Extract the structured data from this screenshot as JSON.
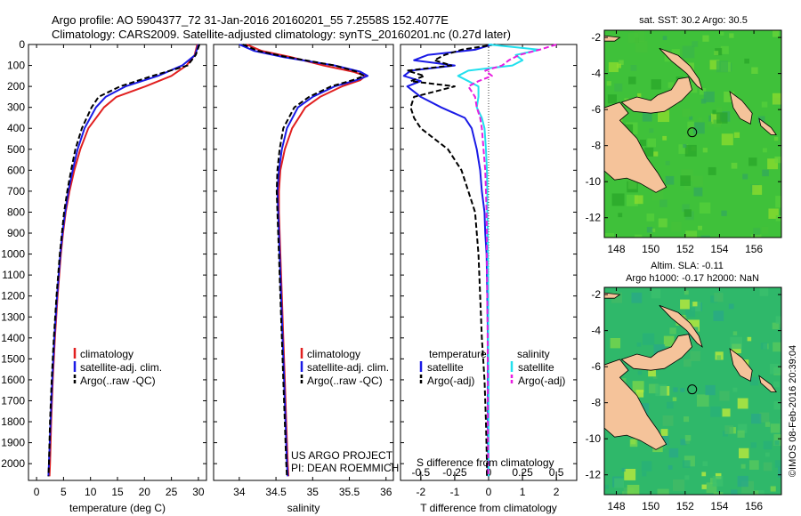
{
  "header": {
    "line1": "Argo profile: AO 5904377_72 31-Jan-2016 20160201_55 7.2558S 152.4077E",
    "line2": "Climatology: CARS2009. Satellite-adjusted climatology: synTS_20160201.nc (0.27d later)"
  },
  "side_stamp": "©IMOS 08-Feb-2016 20:39:04",
  "credit": {
    "line1": "US ARGO PROJECT",
    "line2": "PI: DEAN ROEMMICH"
  },
  "colors": {
    "red": "#e11f1f",
    "blue": "#1a1ae6",
    "black": "#000000",
    "cyan": "#22e0ee",
    "magenta": "#e81ee0",
    "land": "#f5c39a",
    "sea_sst": "#3fc13a",
    "sea_sla": "#2fb86a"
  },
  "chart_data": [
    {
      "id": "temperature",
      "type": "line",
      "xlabel": "temperature (deg C)",
      "ylabel": "",
      "xlim": [
        -1.5,
        31.5
      ],
      "ylim": [
        2080,
        0
      ],
      "xticks": [
        0,
        5,
        10,
        15,
        20,
        25,
        30
      ],
      "yticks": [
        0,
        100,
        200,
        300,
        400,
        500,
        600,
        700,
        800,
        900,
        1000,
        1100,
        1200,
        1300,
        1400,
        1500,
        1600,
        1700,
        1800,
        1900,
        2000
      ],
      "depth": [
        0,
        50,
        100,
        150,
        200,
        250,
        300,
        400,
        500,
        600,
        700,
        800,
        900,
        1000,
        1200,
        1400,
        1600,
        1800,
        2000,
        2060
      ],
      "series": [
        {
          "name": "climatology",
          "color": "red",
          "dash": "solid",
          "values": [
            29.8,
            29.3,
            27.8,
            25.0,
            20.2,
            14.8,
            12.5,
            9.6,
            8.1,
            7.0,
            6.1,
            5.4,
            4.9,
            4.5,
            3.9,
            3.4,
            3.0,
            2.7,
            2.5,
            2.4
          ]
        },
        {
          "name": "satellite-adj. clim.",
          "color": "blue",
          "dash": "solid",
          "values": [
            30.0,
            29.4,
            27.0,
            22.5,
            16.5,
            12.8,
            11.0,
            8.9,
            7.6,
            6.7,
            5.9,
            5.3,
            4.8,
            4.4,
            3.8,
            3.3,
            2.9,
            2.6,
            2.3,
            2.2
          ]
        },
        {
          "name": "Argo(..raw -QC)",
          "color": "black",
          "dash": "dash",
          "values": [
            30.2,
            29.5,
            28.0,
            21.5,
            15.5,
            11.5,
            10.2,
            8.4,
            7.2,
            6.4,
            5.7,
            5.1,
            4.7,
            4.3,
            3.7,
            3.2,
            2.8,
            2.5,
            2.3,
            2.2
          ]
        }
      ]
    },
    {
      "id": "salinity",
      "type": "line",
      "xlabel": "salinity",
      "ylabel": "",
      "xlim": [
        33.65,
        36.1
      ],
      "ylim": [
        2080,
        0
      ],
      "xticks": [
        34,
        34.5,
        35,
        35.5,
        36
      ],
      "yticks": [],
      "depth": [
        0,
        30,
        60,
        100,
        130,
        150,
        170,
        200,
        250,
        300,
        400,
        500,
        600,
        700,
        800,
        1000,
        1200,
        1400,
        1600,
        1800,
        2000,
        2060
      ],
      "series": [
        {
          "name": "climatology",
          "color": "red",
          "dash": "solid",
          "values": [
            34.1,
            34.3,
            34.7,
            35.15,
            35.55,
            35.72,
            35.65,
            35.4,
            35.1,
            34.9,
            34.72,
            34.62,
            34.56,
            34.54,
            34.54,
            34.56,
            34.58,
            34.6,
            34.62,
            34.64,
            34.66,
            34.67
          ]
        },
        {
          "name": "satellite-adj. clim.",
          "color": "blue",
          "dash": "solid",
          "values": [
            34.0,
            34.2,
            34.6,
            35.3,
            35.65,
            35.75,
            35.6,
            35.3,
            35.0,
            34.8,
            34.65,
            34.58,
            34.54,
            34.52,
            34.53,
            34.55,
            34.57,
            34.59,
            34.61,
            34.63,
            34.65,
            34.66
          ]
        },
        {
          "name": "Argo(..raw -QC)",
          "color": "black",
          "dash": "dash",
          "values": [
            34.05,
            34.25,
            34.65,
            35.3,
            35.6,
            35.7,
            35.55,
            35.25,
            34.95,
            34.75,
            34.6,
            34.55,
            34.52,
            34.51,
            34.52,
            34.54,
            34.56,
            34.58,
            34.6,
            34.62,
            34.64,
            34.65
          ]
        }
      ]
    },
    {
      "id": "differences",
      "type": "line",
      "xlabel": "T difference from climatology",
      "xlabel_top": "S difference from climatology",
      "xlim": [
        -2.6,
        2.6
      ],
      "ylim": [
        2080,
        0
      ],
      "xticks": [
        -2,
        -1,
        0,
        1,
        2
      ],
      "s_xticks": [
        -0.5,
        -0.25,
        0,
        0.25,
        0.5
      ],
      "s_tick_labels": [
        "-0.5",
        "-0.25",
        "0",
        "0.25",
        "0.5"
      ],
      "depth": [
        0,
        25,
        50,
        75,
        100,
        125,
        150,
        175,
        200,
        250,
        300,
        350,
        400,
        500,
        600,
        700,
        800,
        900,
        1000,
        1200,
        1400,
        1600,
        1800,
        2000,
        2060
      ],
      "series": [
        {
          "name": "temperature satellite",
          "color": "blue",
          "dash": "solid",
          "values": [
            0.1,
            -0.4,
            -1.8,
            -2.2,
            -1.0,
            -2.3,
            -2.5,
            -2.0,
            -2.4,
            -2.0,
            -1.4,
            -0.7,
            -0.5,
            -0.35,
            -0.25,
            -0.2,
            -0.12,
            -0.1,
            -0.06,
            -0.04,
            -0.02,
            -0.02,
            -0.02,
            -0.01,
            -0.01
          ]
        },
        {
          "name": "temperature Argo(-adj)",
          "color": "black",
          "dash": "dash",
          "values": [
            0.2,
            -0.8,
            -1.3,
            -1.6,
            -1.1,
            -2.4,
            -1.9,
            -2.3,
            -1.0,
            -2.2,
            -2.3,
            -2.2,
            -2.0,
            -1.2,
            -0.8,
            -0.6,
            -0.4,
            -0.35,
            -0.3,
            -0.25,
            -0.2,
            -0.12,
            -0.08,
            -0.05,
            -0.05
          ]
        },
        {
          "name": "salinity satellite",
          "color": "cyan",
          "dash": "solid",
          "values": [
            0.0,
            1.5,
            0.8,
            1.0,
            0.7,
            -0.6,
            -0.9,
            -0.6,
            -0.3,
            -0.3,
            -0.35,
            -0.2,
            -0.12,
            -0.08,
            -0.05,
            -0.04,
            -0.04,
            -0.03,
            -0.02,
            -0.01,
            -0.01,
            0.0,
            0.0,
            0.0,
            0.0
          ]
        },
        {
          "name": "salinity Argo(-adj)",
          "color": "magenta",
          "dash": "dash",
          "values": [
            2.0,
            1.5,
            0.9,
            0.6,
            0.4,
            -0.1,
            0.1,
            -0.3,
            -0.6,
            -0.4,
            -0.35,
            -0.25,
            -0.2,
            -0.15,
            -0.1,
            -0.08,
            -0.06,
            -0.05,
            -0.05,
            -0.04,
            -0.03,
            -0.02,
            -0.02,
            -0.01,
            -0.01
          ]
        }
      ]
    }
  ],
  "legends": {
    "temp": [
      "climatology",
      "satellite-adj. clim.",
      "Argo(..raw -QC)"
    ],
    "sal": [
      "climatology",
      "satellite-adj. clim.",
      "Argo(..raw -QC)"
    ],
    "diff_titles": [
      "temperature",
      "salinity"
    ],
    "diff_left": [
      "satellite",
      "Argo(-adj)"
    ],
    "diff_right": [
      "satellite",
      "Argo(-adj)"
    ]
  },
  "maps": {
    "sst_title": "sat. SST: 30.2  Argo: 30.5",
    "sla_title1": "Altim. SLA: -0.11",
    "sla_title2": "Argo h1000: -0.17 h2000: NaN",
    "xlim": [
      147.3,
      157.6
    ],
    "ylim": [
      -13.1,
      -1.6
    ],
    "xticks": [
      148,
      150,
      152,
      154,
      156
    ],
    "yticks": [
      -2,
      -4,
      -6,
      -8,
      -10,
      -12
    ],
    "float_position": {
      "lon": 152.41,
      "lat": -7.26
    }
  }
}
